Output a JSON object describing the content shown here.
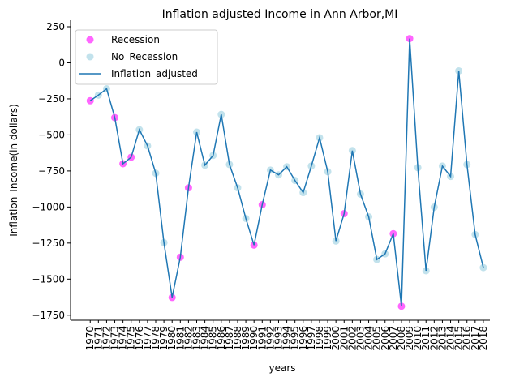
{
  "chart_data": {
    "type": "line",
    "title": "Inflation adjusted Income in Ann Arbor,MI",
    "xlabel": "years",
    "ylabel": "Inflation_Income(in dollars)",
    "xlim": [
      1967.6,
      2018.8
    ],
    "ylim": [
      -1785,
      295
    ],
    "xticks": [
      1970,
      1971,
      1972,
      1973,
      1974,
      1975,
      1976,
      1977,
      1978,
      1979,
      1980,
      1981,
      1982,
      1983,
      1984,
      1985,
      1986,
      1987,
      1988,
      1989,
      1990,
      1991,
      1992,
      1993,
      1994,
      1995,
      1996,
      1997,
      1998,
      1999,
      2000,
      2001,
      2002,
      2003,
      2004,
      2005,
      2006,
      2007,
      2008,
      2009,
      2010,
      2011,
      2012,
      2013,
      2014,
      2015,
      2016,
      2017,
      2018
    ],
    "yticks": [
      250,
      0,
      {
        "value": -250,
        "label": "−250"
      },
      {
        "value": -500,
        "label": "−500"
      },
      {
        "value": -750,
        "label": "−750"
      },
      {
        "value": -1000,
        "label": "−1000"
      },
      {
        "value": -1250,
        "label": "−1250"
      },
      {
        "value": -1500,
        "label": "−1500"
      },
      {
        "value": -1750,
        "label": "−1750"
      }
    ],
    "legend": "upper left",
    "series": [
      {
        "name": "Recession",
        "type": "scatter",
        "color": "#ff00ff",
        "x": [
          1970,
          1973,
          1974,
          1975,
          1980,
          1981,
          1982,
          1990,
          1991,
          2001,
          2007,
          2008,
          2009
        ],
        "values": [
          -263,
          -380,
          -700,
          -655,
          -1627,
          -1348,
          -867,
          -1264,
          -984,
          -1046,
          -1185,
          -1688,
          168
        ]
      },
      {
        "name": "No_Recession",
        "type": "scatter",
        "color": "#add8e6",
        "x": [
          1971,
          1972,
          1976,
          1977,
          1978,
          1979,
          1983,
          1984,
          1985,
          1986,
          1987,
          1988,
          1989,
          1992,
          1993,
          1994,
          1995,
          1996,
          1997,
          1998,
          1999,
          2000,
          2002,
          2003,
          2004,
          2005,
          2006,
          2010,
          2011,
          2012,
          2013,
          2014,
          2015,
          2016,
          2017,
          2018
        ],
        "values": [
          -224,
          -180,
          -464,
          -576,
          -766,
          -1247,
          -481,
          -710,
          -643,
          -358,
          -705,
          -867,
          -1079,
          -744,
          -777,
          -721,
          -816,
          -900,
          -716,
          -520,
          -755,
          -1236,
          -609,
          -911,
          -1068,
          -1364,
          -1325,
          -727,
          -1442,
          -1001,
          -716,
          -788,
          -56,
          -705,
          -1191,
          -1420
        ]
      },
      {
        "name": "Inflation_adjusted",
        "type": "line",
        "color": "#1f77b4",
        "x": [
          1970,
          1971,
          1972,
          1973,
          1974,
          1975,
          1976,
          1977,
          1978,
          1979,
          1980,
          1981,
          1982,
          1983,
          1984,
          1985,
          1986,
          1987,
          1988,
          1989,
          1990,
          1991,
          1992,
          1993,
          1994,
          1995,
          1996,
          1997,
          1998,
          1999,
          2000,
          2001,
          2002,
          2003,
          2004,
          2005,
          2006,
          2007,
          2008,
          2009,
          2010,
          2011,
          2012,
          2013,
          2014,
          2015,
          2016,
          2017,
          2018
        ],
        "values": [
          -263,
          -224,
          -180,
          -380,
          -700,
          -655,
          -464,
          -576,
          -766,
          -1247,
          -1627,
          -1348,
          -867,
          -481,
          -710,
          -643,
          -358,
          -705,
          -867,
          -1079,
          -1264,
          -984,
          -744,
          -777,
          -721,
          -816,
          -900,
          -716,
          -520,
          -755,
          -1236,
          -1046,
          -609,
          -911,
          -1068,
          -1364,
          -1325,
          -1185,
          -1688,
          168,
          -727,
          -1442,
          -1001,
          -716,
          -788,
          -56,
          -705,
          -1191,
          -1420
        ]
      }
    ]
  }
}
